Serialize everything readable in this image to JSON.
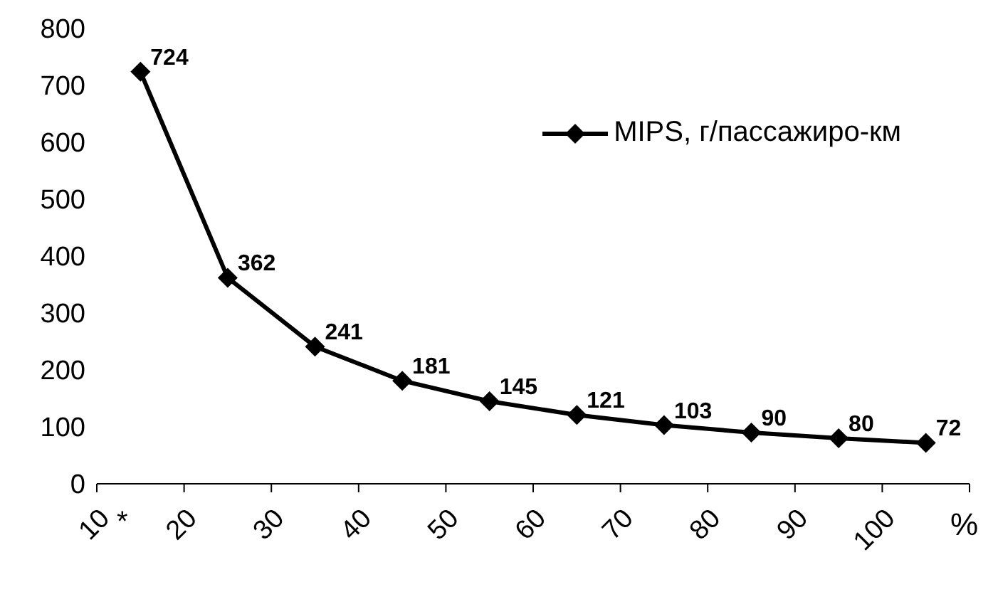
{
  "chart_data": {
    "type": "line",
    "xlabel": "%",
    "annotations": [
      "*"
    ],
    "x": [
      15,
      25,
      35,
      45,
      55,
      65,
      75,
      85,
      95,
      105
    ],
    "series": [
      {
        "name": "MIPS, г/пассажиро-км",
        "color": "#000000",
        "values": [
          724,
          362,
          241,
          181,
          145,
          121,
          103,
          90,
          80,
          72
        ]
      }
    ],
    "xlim": [
      10,
      110
    ],
    "xticks": [
      10,
      20,
      30,
      40,
      50,
      60,
      70,
      80,
      90,
      100,
      {
        "value": 110,
        "label": null
      }
    ],
    "ylim": [
      0,
      800
    ],
    "yticks": [
      0,
      100,
      200,
      300,
      400,
      500,
      600,
      700,
      800
    ],
    "grid": false,
    "legend": "top right",
    "marker": "diamond",
    "line_style": "solid",
    "data_labels": true
  }
}
